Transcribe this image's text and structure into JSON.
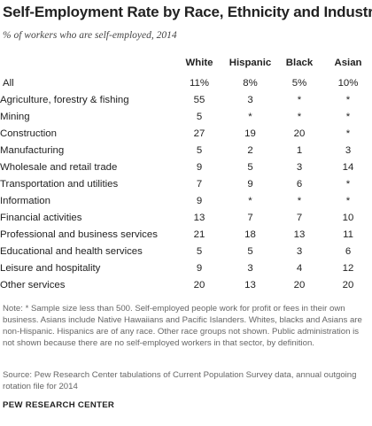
{
  "title": "Self-Employment Rate by Race, Ethnicity and Industry",
  "subtitle": "% of workers who are self-employed, 2014",
  "note": "Note: * Sample size less than 500. Self-employed people work for profit or fees in their own business. Asians include Native Hawaiians and Pacific Islanders. Whites, blacks and Asians are non-Hispanic. Hispanics are of any race. Other race groups not shown. Public administration is not shown because there are no self-employed workers in that sector, by definition.",
  "source": "Source: Pew Research Center tabulations of Current Population Survey data, annual outgoing rotation file for 2014",
  "brand": "PEW RESEARCH CENTER",
  "chart_data": {
    "type": "table",
    "title": "Self-Employment Rate by Race, Ethnicity and Industry",
    "subtitle": "% of workers who are self-employed, 2014",
    "columns": [
      "White",
      "Hispanic",
      "Black",
      "Asian"
    ],
    "rows": [
      {
        "label": "All",
        "values": [
          "11%",
          "8%",
          "5%",
          "10%"
        ]
      },
      {
        "label": "Agriculture, forestry & fishing",
        "values": [
          "55",
          "3",
          "*",
          "*"
        ]
      },
      {
        "label": "Mining",
        "values": [
          "5",
          "*",
          "*",
          "*"
        ]
      },
      {
        "label": "Construction",
        "values": [
          "27",
          "19",
          "20",
          "*"
        ]
      },
      {
        "label": "Manufacturing",
        "values": [
          "5",
          "2",
          "1",
          "3"
        ]
      },
      {
        "label": "Wholesale and retail trade",
        "values": [
          "9",
          "5",
          "3",
          "14"
        ]
      },
      {
        "label": "Transportation and utilities",
        "values": [
          "7",
          "9",
          "6",
          "*"
        ]
      },
      {
        "label": "Information",
        "values": [
          "9",
          "*",
          "*",
          "*"
        ]
      },
      {
        "label": "Financial activities",
        "values": [
          "13",
          "7",
          "7",
          "10"
        ]
      },
      {
        "label": "Professional and business services",
        "values": [
          "21",
          "18",
          "13",
          "11"
        ]
      },
      {
        "label": "Educational and health services",
        "values": [
          "5",
          "5",
          "3",
          "6"
        ]
      },
      {
        "label": "Leisure and hospitality",
        "values": [
          "9",
          "3",
          "4",
          "12"
        ]
      },
      {
        "label": "Other services",
        "values": [
          "20",
          "13",
          "20",
          "20"
        ]
      }
    ]
  }
}
